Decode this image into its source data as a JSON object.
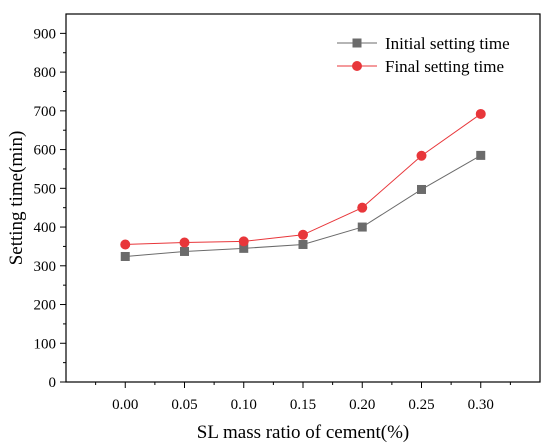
{
  "chart_data": {
    "type": "line",
    "xlabel": "SL mass ratio of cement(%)",
    "ylabel": "Setting time(min)",
    "x": [
      0.0,
      0.05,
      0.1,
      0.15,
      0.2,
      0.25,
      0.3
    ],
    "x_tick_labels": [
      "0.00",
      "0.05",
      "0.10",
      "0.15",
      "0.20",
      "0.25",
      "0.30"
    ],
    "xlim": [
      -0.05,
      0.35
    ],
    "ylim": [
      0,
      950
    ],
    "y_ticks": [
      0,
      100,
      200,
      300,
      400,
      500,
      600,
      700,
      800,
      900
    ],
    "y_tick_labels": [
      "0",
      "100",
      "200",
      "300",
      "400",
      "500",
      "600",
      "700",
      "800",
      "900"
    ],
    "grid": false,
    "legend_position": "top-right",
    "series": [
      {
        "name": "Initial setting time",
        "marker": "square",
        "color": "#6b6b6b",
        "values": [
          324,
          337,
          345,
          355,
          400,
          497,
          585
        ]
      },
      {
        "name": "Final setting time",
        "marker": "circle",
        "color": "#e8363a",
        "values": [
          355,
          360,
          363,
          380,
          450,
          584,
          692
        ]
      }
    ]
  }
}
